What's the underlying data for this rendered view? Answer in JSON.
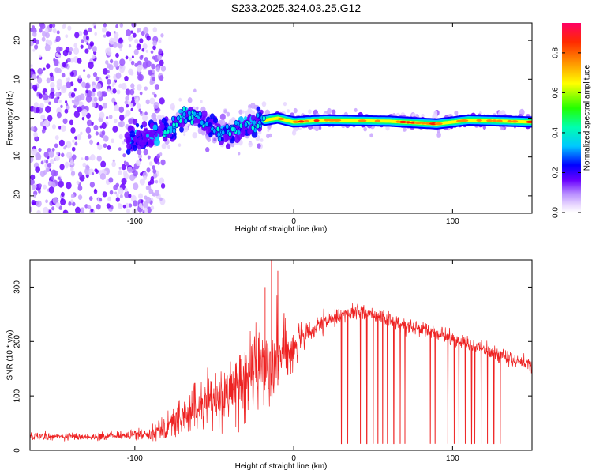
{
  "title": "S233.2025.324.03.25.G12",
  "chart_data": [
    {
      "type": "heatmap",
      "xlabel": "Height of straight line (km)",
      "ylabel": "Frequency (Hz)",
      "xlim": [
        -166,
        150
      ],
      "ylim": [
        -24.5,
        24.5
      ],
      "xticks": [
        -100,
        0,
        100
      ],
      "yticks": [
        -20,
        -10,
        0,
        10,
        20
      ],
      "colorbar": {
        "label": "Normalized spectral amplitude",
        "range": [
          0.0,
          0.95
        ],
        "ticks": [
          0.0,
          0.2,
          0.4,
          0.6,
          0.8
        ]
      },
      "ridge": {
        "description_points": [
          {
            "x": -100,
            "y": -6
          },
          {
            "x": -80,
            "y": -3
          },
          {
            "x": -65,
            "y": 1
          },
          {
            "x": -45,
            "y": -4
          },
          {
            "x": -25,
            "y": -1
          },
          {
            "x": -10,
            "y": 0
          },
          {
            "x": 0,
            "y": -1
          },
          {
            "x": 20,
            "y": -0.5
          },
          {
            "x": 60,
            "y": -0.8
          },
          {
            "x": 90,
            "y": -1.5
          },
          {
            "x": 110,
            "y": -0.5
          },
          {
            "x": 150,
            "y": -1
          }
        ],
        "peak_amplitude": 0.9
      }
    },
    {
      "type": "line",
      "xlabel": "Height of straight line (km)",
      "ylabel": "SNR (10 * v/v)",
      "xlim": [
        -166,
        150
      ],
      "ylim": [
        0,
        350
      ],
      "xticks": [
        -100,
        0,
        100
      ],
      "yticks": [
        0,
        100,
        200,
        300
      ],
      "series": [
        {
          "color": "#ee2222",
          "envelope_x": [
            -166,
            -120,
            -100,
            -90,
            -80,
            -70,
            -60,
            -50,
            -40,
            -30,
            -20,
            -10,
            0,
            10,
            20,
            30,
            40,
            50,
            60,
            70,
            80,
            90,
            100,
            110,
            120,
            130,
            140,
            150
          ],
          "envelope_y": [
            25,
            25,
            28,
            32,
            45,
            60,
            80,
            95,
            110,
            130,
            160,
            175,
            190,
            215,
            235,
            250,
            255,
            250,
            240,
            230,
            225,
            215,
            205,
            195,
            185,
            175,
            165,
            155
          ],
          "noise": [
            8,
            8,
            10,
            15,
            25,
            40,
            50,
            55,
            60,
            70,
            90,
            100,
            40,
            25,
            20,
            15,
            15,
            15,
            15,
            15,
            15,
            15,
            15,
            15,
            15,
            15,
            15,
            15
          ],
          "dropouts_x": [
            30,
            34,
            42,
            46,
            50,
            53,
            56,
            59,
            63,
            67,
            70,
            86,
            89,
            97,
            101,
            104,
            108,
            112,
            114,
            118,
            122,
            126,
            130
          ],
          "dropout_y": 12
        }
      ]
    }
  ]
}
